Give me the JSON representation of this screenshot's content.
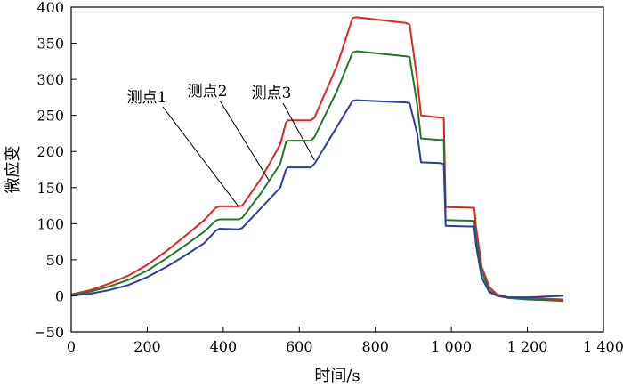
{
  "chart_data": {
    "type": "line",
    "xlabel": "时间/s",
    "ylabel": "微应变",
    "xlim": [
      0,
      1400
    ],
    "ylim": [
      -50,
      400
    ],
    "x_ticks": [
      0,
      200,
      400,
      600,
      800,
      1000,
      1200,
      1400
    ],
    "x_tick_labels": [
      "0",
      "200",
      "400",
      "600",
      "800",
      "1 000",
      "1 200",
      "1 400"
    ],
    "y_ticks": [
      -50,
      0,
      50,
      100,
      150,
      200,
      250,
      300,
      350,
      400
    ],
    "y_tick_labels": [
      "−50",
      "0",
      "50",
      "100",
      "150",
      "200",
      "250",
      "300",
      "350",
      "400"
    ],
    "grid": false,
    "series": [
      {
        "name": "测点1",
        "color": "#e8231e",
        "x": [
          0,
          50,
          100,
          150,
          200,
          250,
          300,
          350,
          380,
          390,
          440,
          450,
          500,
          550,
          565,
          570,
          630,
          640,
          700,
          740,
          750,
          880,
          890,
          910,
          920,
          970,
          980,
          985,
          1060,
          1065,
          1080,
          1100,
          1120,
          1150,
          1200,
          1250,
          1295
        ],
        "y": [
          2,
          8,
          17,
          28,
          43,
          62,
          83,
          105,
          122,
          124,
          124,
          125,
          163,
          210,
          240,
          243,
          243,
          247,
          320,
          385,
          386,
          378,
          376,
          300,
          250,
          247,
          247,
          123,
          122,
          95,
          40,
          12,
          2,
          -2,
          -3,
          -4,
          -5
        ]
      },
      {
        "name": "测点2",
        "color": "#1f7a26",
        "x": [
          0,
          50,
          100,
          150,
          200,
          250,
          300,
          350,
          380,
          390,
          440,
          450,
          500,
          550,
          565,
          570,
          630,
          640,
          700,
          740,
          750,
          880,
          890,
          910,
          920,
          970,
          980,
          985,
          1060,
          1065,
          1080,
          1100,
          1120,
          1150,
          1200,
          1250,
          1295
        ],
        "y": [
          1,
          6,
          13,
          22,
          35,
          52,
          70,
          89,
          104,
          106,
          106,
          108,
          143,
          183,
          213,
          215,
          215,
          220,
          285,
          337,
          339,
          332,
          331,
          265,
          218,
          216,
          216,
          105,
          104,
          80,
          33,
          8,
          0,
          -3,
          -5,
          -6,
          -7
        ]
      },
      {
        "name": "测点3",
        "color": "#2c3da3",
        "x": [
          0,
          50,
          100,
          150,
          200,
          250,
          300,
          350,
          380,
          390,
          440,
          450,
          500,
          550,
          565,
          570,
          630,
          640,
          700,
          740,
          750,
          880,
          890,
          910,
          920,
          970,
          980,
          985,
          1060,
          1065,
          1080,
          1100,
          1120,
          1150,
          1200,
          1250,
          1295
        ],
        "y": [
          0,
          3,
          8,
          15,
          26,
          40,
          56,
          73,
          90,
          93,
          92,
          94,
          122,
          150,
          175,
          178,
          178,
          183,
          235,
          270,
          271,
          268,
          267,
          225,
          185,
          184,
          183,
          97,
          96,
          70,
          25,
          5,
          0,
          -2,
          -2,
          -1,
          0
        ]
      }
    ],
    "annotations": [
      {
        "text": "测点1",
        "points_to_series": 0,
        "at_x": 440,
        "at_y": 124
      },
      {
        "text": "测点2",
        "points_to_series": 1,
        "at_x": 520,
        "at_y": 160
      },
      {
        "text": "测点3",
        "points_to_series": 2,
        "at_x": 640,
        "at_y": 188
      }
    ]
  }
}
